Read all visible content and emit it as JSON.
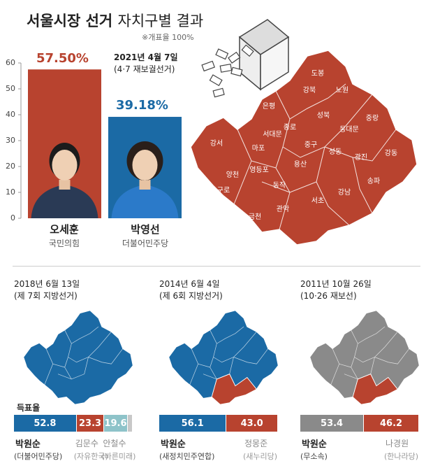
{
  "title": {
    "main": "서울시장 선거",
    "sub": "자치구별 결과"
  },
  "note": "※개표율 100%",
  "colors": {
    "red": "#b8432f",
    "blue": "#1b6aa5",
    "gray": "#8a8a8a",
    "lightblue": "#8ec3c9",
    "lightgray": "#c8c8c8"
  },
  "main_election": {
    "date": "2021년 4월 7일",
    "type": "(4·7 재보궐선거)"
  },
  "candidates": [
    {
      "name": "오세훈",
      "party": "국민의힘",
      "pct_label": "57.50%"
    },
    {
      "name": "박영선",
      "party": "더불어민주당",
      "pct_label": "39.18%"
    }
  ],
  "chart_data": {
    "type": "bar",
    "categories": [
      "오세훈",
      "박영선"
    ],
    "values": [
      57.5,
      39.18
    ],
    "ylim": [
      0,
      60
    ],
    "yticks": [
      0,
      10,
      20,
      30,
      40,
      50,
      60
    ]
  },
  "districts": [
    "도봉",
    "노원",
    "강북",
    "은평",
    "성북",
    "중랑",
    "종로",
    "동대문",
    "서대문",
    "강서",
    "마포",
    "중구",
    "성동",
    "광진",
    "강동",
    "양천",
    "영등포",
    "용산",
    "구로",
    "동작",
    "송파",
    "강남",
    "서초",
    "금천",
    "관악"
  ],
  "vote_share_label": "득표율",
  "past_elections": [
    {
      "date": "2018년 6월 13일",
      "type": "(제 7회 지방선거)",
      "segments": [
        {
          "value": 52.8,
          "label": "52.8",
          "color": "#1b6aa5"
        },
        {
          "value": 23.3,
          "label": "23.3",
          "color": "#b8432f"
        },
        {
          "value": 19.6,
          "label": "19.6",
          "color": "#8ec3c9"
        },
        {
          "value": 4.3,
          "label": "",
          "color": "#c8c8c8"
        }
      ],
      "winner": {
        "name": "박원순",
        "party": "(더불어민주당)"
      },
      "others": [
        {
          "name": "김문수",
          "party": "(자유한국)"
        },
        {
          "name": "안철수",
          "party": "(바른미래)"
        }
      ]
    },
    {
      "date": "2014년 6월 4일",
      "type": "(제 6회 지방선거)",
      "segments": [
        {
          "value": 56.1,
          "label": "56.1",
          "color": "#1b6aa5"
        },
        {
          "value": 43.0,
          "label": "43.0",
          "color": "#b8432f"
        }
      ],
      "winner": {
        "name": "박원순",
        "party": "(새정치민주연합)"
      },
      "others": [
        {
          "name": "정몽준",
          "party": "(새누리당)"
        }
      ]
    },
    {
      "date": "2011년 10월 26일",
      "type": "(10·26 재보선)",
      "segments": [
        {
          "value": 53.4,
          "label": "53.4",
          "color": "#8a8a8a"
        },
        {
          "value": 46.2,
          "label": "46.2",
          "color": "#b8432f"
        }
      ],
      "winner": {
        "name": "박원순",
        "party": "(무소속)"
      },
      "others": [
        {
          "name": "나경원",
          "party": "(한나라당)"
        }
      ]
    }
  ]
}
